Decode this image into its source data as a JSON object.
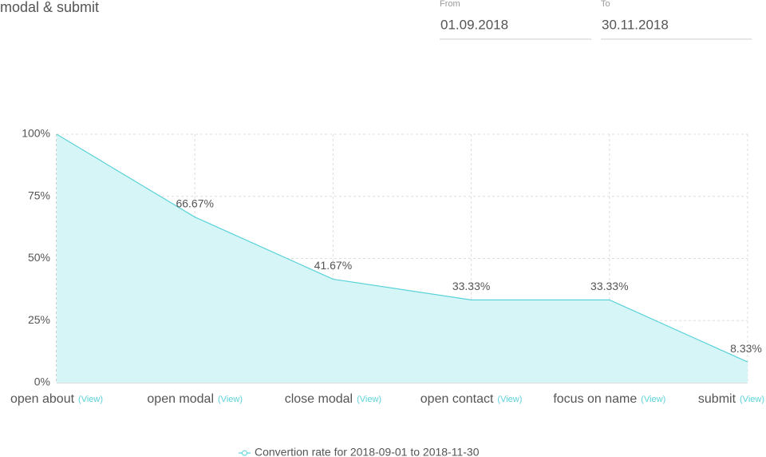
{
  "header": {
    "title": "modal & submit",
    "from_label": "From",
    "from_value": "01.09.2018",
    "to_label": "To",
    "to_value": "30.11.2018"
  },
  "chart_data": {
    "type": "line",
    "categories": [
      "open about",
      "open modal",
      "close modal",
      "open contact",
      "focus on name",
      "submit"
    ],
    "view_link": "(View)",
    "series": [
      {
        "name": "Convertion rate for 2018-09-01 to 2018-11-30",
        "color": "#5ad2da",
        "fill": "#d6f5f6",
        "values": [
          100,
          66.67,
          41.67,
          33.33,
          33.33,
          8.33
        ],
        "value_labels": [
          null,
          "66.67%",
          "41.67%",
          "33.33%",
          "33.33%",
          "8.33%"
        ]
      }
    ],
    "ylim": [
      0,
      100
    ],
    "yticks": [
      {
        "value": 0,
        "label": "0%"
      },
      {
        "value": 25,
        "label": "25%"
      },
      {
        "value": 50,
        "label": "50%"
      },
      {
        "value": 75,
        "label": "75%"
      },
      {
        "value": 100,
        "label": "100%"
      }
    ],
    "grid": true
  }
}
